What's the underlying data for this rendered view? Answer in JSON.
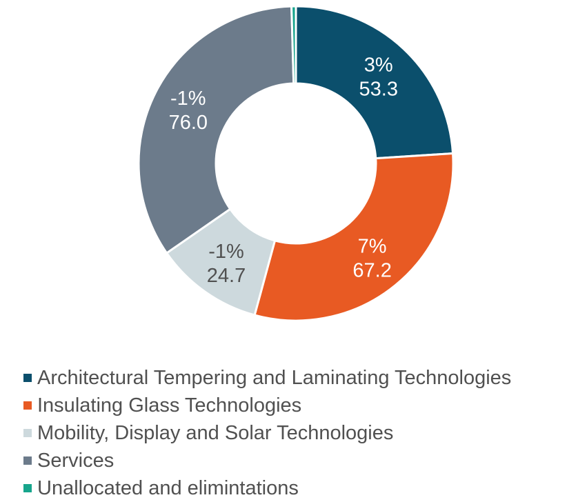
{
  "chart_data": {
    "type": "pie",
    "style": "donut",
    "title": "",
    "categories": [
      "Architectural Tempering and Laminating Technologies",
      "Insulating Glass Technologies",
      "Mobility, Display and Solar Technologies",
      "Services",
      "Unallocated and elimintations"
    ],
    "values": [
      53.3,
      67.2,
      24.7,
      76.0,
      1.0
    ],
    "percent_change": [
      "3%",
      "7%",
      "-1%",
      "-1%",
      ""
    ],
    "data_labels": [
      {
        "line1": "3%",
        "line2": "53.3"
      },
      {
        "line1": "7%",
        "line2": "67.2"
      },
      {
        "line1": "-1%",
        "line2": "24.7"
      },
      {
        "line1": "-1%",
        "line2": "76.0"
      },
      null
    ],
    "colors": [
      "#0b4f6c",
      "#e85a23",
      "#cdd9dd",
      "#6c7b8b",
      "#17a58c"
    ],
    "label_colors": [
      "#ffffff",
      "#ffffff",
      "#505050",
      "#ffffff",
      "#ffffff"
    ],
    "legend": {
      "position": "bottom",
      "entries": [
        "Architectural Tempering and Laminating Technologies",
        "Insulating Glass Technologies",
        "Mobility, Display and Solar Technologies",
        "Services",
        "Unallocated and elimintations"
      ]
    }
  }
}
